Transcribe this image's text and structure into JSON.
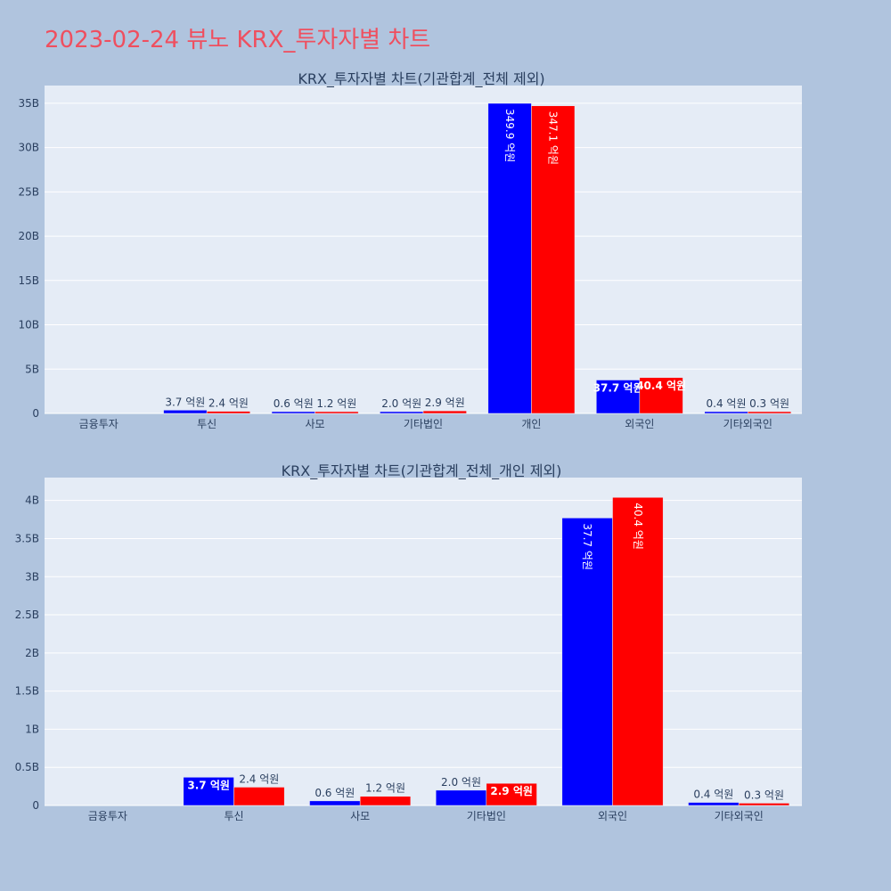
{
  "page": {
    "title": "2023-02-24 뷰노 KRX_투자자별 차트"
  },
  "colors": {
    "buy": "#0000ff",
    "sell": "#ff0000",
    "plot_bg": "#e5ecf6",
    "paper_bg": "#b0c4de",
    "title": "#ef4f5f"
  },
  "chart_data": [
    {
      "type": "bar",
      "title": "KRX_투자자별 차트(기관합계_전체 제외)",
      "categories": [
        "금융투자",
        "투신",
        "사모",
        "기타법인",
        "개인",
        "외국인",
        "기타외국인"
      ],
      "ylim": [
        0,
        37000000000
      ],
      "yticks": [
        0,
        5000000000,
        10000000000,
        15000000000,
        20000000000,
        25000000000,
        30000000000,
        35000000000
      ],
      "ytick_labels": [
        "0",
        "5B",
        "10B",
        "15B",
        "20B",
        "25B",
        "30B",
        "35B"
      ],
      "grid": true,
      "series": [
        {
          "color": "#0000ff",
          "values": [
            0,
            370000000,
            60000000,
            200000000,
            34990000000,
            3770000000,
            40000000
          ],
          "labels": [
            "",
            "3.7 억원",
            "0.6 억원",
            "2.0 억원",
            "349.9 억원",
            "37.7 억원",
            "0.4 억원"
          ]
        },
        {
          "color": "#ff0000",
          "values": [
            0,
            240000000,
            120000000,
            290000000,
            34710000000,
            4040000000,
            30000000
          ],
          "labels": [
            "",
            "2.4 억원",
            "1.2 억원",
            "2.9 억원",
            "347.1 억원",
            "40.4 억원",
            "0.3 억원"
          ]
        }
      ]
    },
    {
      "type": "bar",
      "title": "KRX_투자자별 차트(기관합계_전체_개인 제외)",
      "categories": [
        "금융투자",
        "투신",
        "사모",
        "기타법인",
        "외국인",
        "기타외국인"
      ],
      "ylim": [
        0,
        4300000000
      ],
      "yticks": [
        0,
        500000000,
        1000000000,
        1500000000,
        2000000000,
        2500000000,
        3000000000,
        3500000000,
        4000000000
      ],
      "ytick_labels": [
        "0",
        "0.5B",
        "1B",
        "1.5B",
        "2B",
        "2.5B",
        "3B",
        "3.5B",
        "4B"
      ],
      "grid": true,
      "series": [
        {
          "color": "#0000ff",
          "values": [
            0,
            370000000,
            60000000,
            200000000,
            3770000000,
            40000000
          ],
          "labels": [
            "",
            "3.7 억원",
            "0.6 억원",
            "2.0 억원",
            "37.7 억원",
            "0.4 억원"
          ]
        },
        {
          "color": "#ff0000",
          "values": [
            0,
            240000000,
            120000000,
            290000000,
            4040000000,
            30000000
          ],
          "labels": [
            "",
            "2.4 억원",
            "1.2 억원",
            "2.9 억원",
            "40.4 억원",
            "0.3 억원"
          ]
        }
      ]
    }
  ]
}
